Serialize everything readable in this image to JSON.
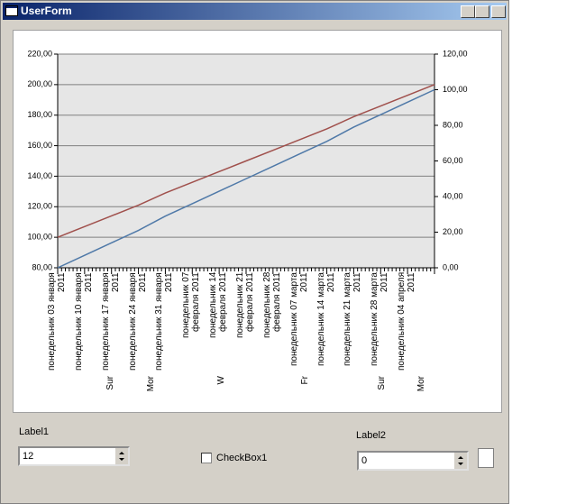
{
  "window": {
    "title": "UserForm"
  },
  "chart_data": {
    "type": "line",
    "categories": [
      "понедельник 03 января 2011",
      "понедельник 10 января 2011",
      "понедельник 17 января 2011",
      "понедельник 24 января 2011",
      "понедельник 31 января 2011",
      "понедельник 07 февраля 2011",
      "понедельник 14 февраля 2011",
      "понедельник 21 февраля 2011",
      "понедельник 28 февраля 2011",
      "понедельник 07 марта 2011",
      "понедельник 14 марта 2011",
      "понедельник 21 марта 2011",
      "понедельник 28 марта 2011",
      "понедельник 04 апреля 2011",
      null
    ],
    "x_sublabels": [
      "Sur",
      "Mor",
      "W",
      "Fr",
      "Sur",
      "Mor"
    ],
    "series": [
      {
        "color": "#a0504c",
        "values": [
          100,
          107,
          114,
          121,
          129,
          136,
          143,
          150,
          157,
          164,
          171,
          179,
          186,
          193,
          200
        ]
      },
      {
        "color": "#4f79a8",
        "axis": "y2",
        "values": [
          0,
          7,
          14,
          21,
          29,
          36,
          43,
          50,
          57,
          64,
          71,
          79,
          86,
          93,
          100
        ]
      }
    ],
    "ylim": [
      80,
      220
    ],
    "yticks": [
      {
        "value": 80,
        "label": "80,00"
      },
      {
        "value": 100,
        "label": "100,00"
      },
      {
        "value": 120,
        "label": "120,00"
      },
      {
        "value": 140,
        "label": "140,00"
      },
      {
        "value": 160,
        "label": "160,00"
      },
      {
        "value": 180,
        "label": "180,00"
      },
      {
        "value": 200,
        "label": "200,00"
      },
      {
        "value": 220,
        "label": "220,00"
      }
    ],
    "y2lim": [
      0,
      120
    ],
    "y2ticks": [
      {
        "value": 0,
        "label": "0,00"
      },
      {
        "value": 20,
        "label": "20,00"
      },
      {
        "value": 40,
        "label": "40,00"
      },
      {
        "value": 60,
        "label": "60,00"
      },
      {
        "value": 80,
        "label": "80,00"
      },
      {
        "value": 100,
        "label": "100,00"
      },
      {
        "value": 120,
        "label": "120,00"
      }
    ],
    "grid": true
  },
  "form": {
    "label1": "Label1",
    "textbox1": "12",
    "checkbox1": "CheckBox1",
    "label2": "Label2",
    "textbox2": "0"
  }
}
